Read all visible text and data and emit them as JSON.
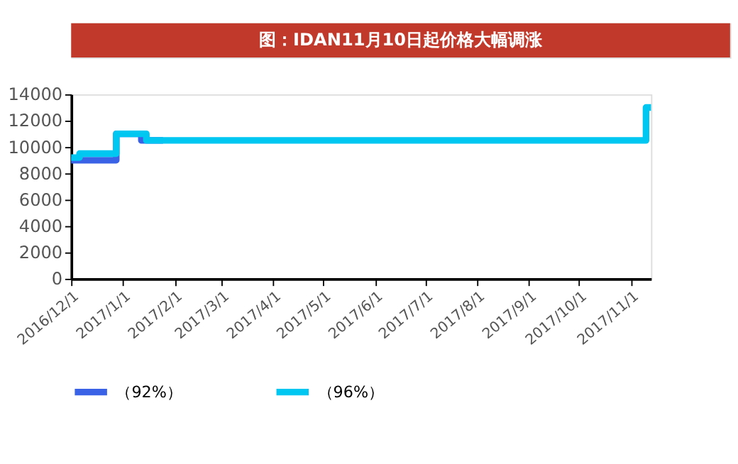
{
  "chart_data": {
    "type": "step",
    "title": "图：IDAN11月10日起价格大幅调涨",
    "xlim": [
      "2016-12-01",
      "2017-11-13"
    ],
    "xticks": [
      {
        "value": "2016-12-01",
        "label": "2016/12/1"
      },
      {
        "value": "2017-01-01",
        "label": "2017/1/1"
      },
      {
        "value": "2017-02-01",
        "label": "2017/2/1"
      },
      {
        "value": "2017-03-01",
        "label": "2017/3/1"
      },
      {
        "value": "2017-04-01",
        "label": "2017/4/1"
      },
      {
        "value": "2017-05-01",
        "label": "2017/5/1"
      },
      {
        "value": "2017-06-01",
        "label": "2017/6/1"
      },
      {
        "value": "2017-07-01",
        "label": "2017/7/1"
      },
      {
        "value": "2017-08-01",
        "label": "2017/8/1"
      },
      {
        "value": "2017-09-01",
        "label": "2017/9/1"
      },
      {
        "value": "2017-10-01",
        "label": "2017/10/1"
      },
      {
        "value": "2017-11-01",
        "label": "2017/11/1"
      }
    ],
    "ylim": [
      0,
      14000
    ],
    "yticks": [
      0,
      2000,
      4000,
      6000,
      8000,
      10000,
      12000,
      14000
    ],
    "series": [
      {
        "name": "（92%）",
        "color": "#3a62e6",
        "x": [
          "2016-12-01",
          "2016-12-28",
          "2017-01-12",
          "2017-01-25"
        ],
        "values": [
          9000,
          11000,
          10500,
          10500
        ]
      },
      {
        "name": "（96%）",
        "color": "#00c6f2",
        "x": [
          "2016-12-01",
          "2016-12-06",
          "2016-12-28",
          "2017-01-15",
          "2017-11-10",
          "2017-11-13"
        ],
        "values": [
          9200,
          9500,
          11000,
          10500,
          13000,
          13000
        ]
      }
    ],
    "legend": "bottom",
    "grid": false
  }
}
